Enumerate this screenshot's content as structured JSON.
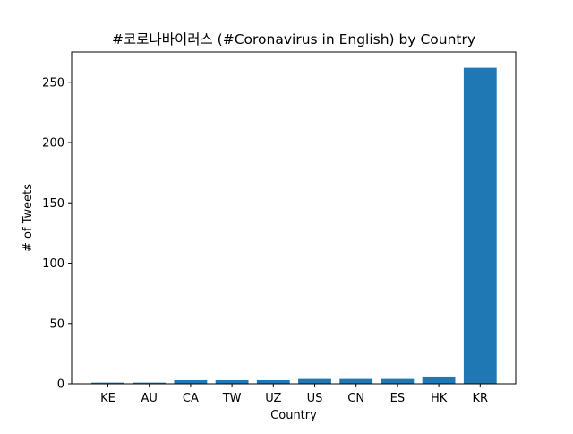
{
  "chart_data": {
    "type": "bar",
    "title": "#코로나바이러스 (#Coronavirus in English) by Country",
    "xlabel": "Country",
    "ylabel": "# of Tweets",
    "categories": [
      "KE",
      "AU",
      "CA",
      "TW",
      "UZ",
      "US",
      "CN",
      "ES",
      "HK",
      "KR"
    ],
    "values": [
      1,
      1,
      3,
      3,
      3,
      4,
      4,
      4,
      6,
      262
    ],
    "ylim": [
      0,
      275.1
    ],
    "yticks": [
      0,
      50,
      100,
      150,
      200,
      250
    ],
    "bar_color": "#1f77b4",
    "grid": false,
    "legend": "none"
  }
}
